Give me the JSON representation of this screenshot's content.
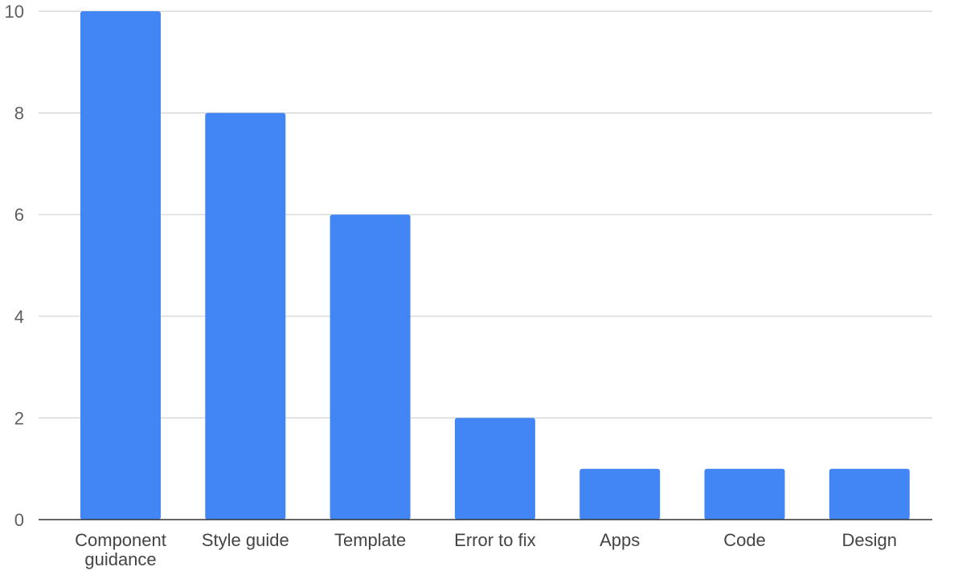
{
  "chart_data": {
    "type": "bar",
    "title": "",
    "xlabel": "",
    "ylabel": "",
    "categories": [
      "Component guidance",
      "Style guide",
      "Template",
      "Error to fix",
      "Apps",
      "Code",
      "Design"
    ],
    "category_lines": [
      [
        "Component",
        "guidance"
      ],
      [
        "Style guide"
      ],
      [
        "Template"
      ],
      [
        "Error to fix"
      ],
      [
        "Apps"
      ],
      [
        "Code"
      ],
      [
        "Design"
      ]
    ],
    "values": [
      10,
      8,
      6,
      2,
      1,
      1,
      1
    ],
    "ylim": [
      0,
      10
    ],
    "yticks": [
      0,
      2,
      4,
      6,
      8,
      10
    ],
    "grid": true,
    "legend": "none",
    "bar_color": "#4285f4",
    "grid_color": "#d2d2d2",
    "axis_color": "#333333"
  }
}
